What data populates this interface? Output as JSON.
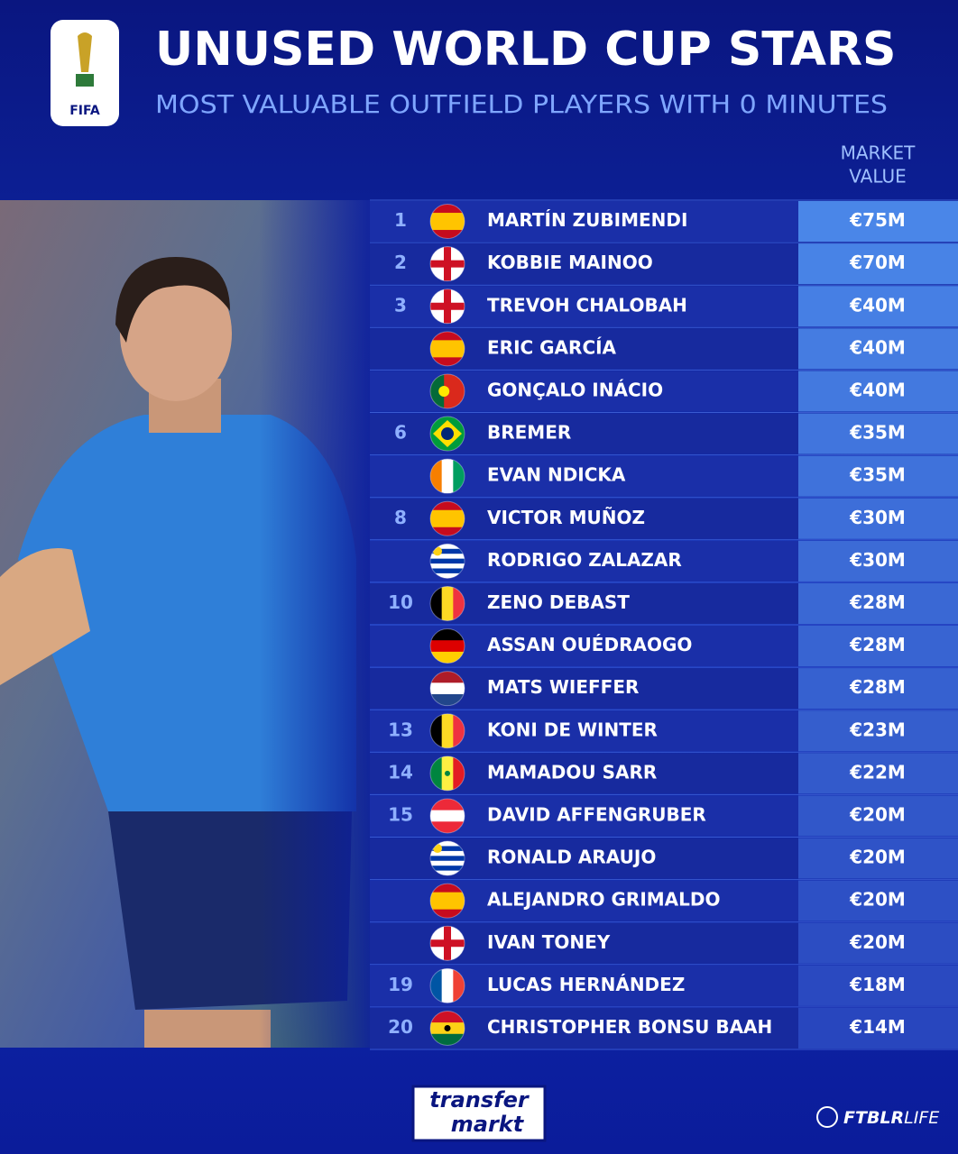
{
  "header": {
    "logo": "FIFA",
    "title": "UNUSED WORLD CUP STARS",
    "subtitle": "MOST VALUABLE OUTFIELD PLAYERS WITH 0 MINUTES"
  },
  "table": {
    "column_header": [
      "MARKET",
      "VALUE"
    ],
    "rows": [
      [
        1,
        "MARTÍN ZUBIMENDI",
        "€75M"
      ],
      [
        2,
        "KOBBIE MAINOO",
        "€70M"
      ],
      [
        3,
        "TREVOH CHALOBAH",
        "€40M"
      ],
      [
        null,
        "ERIC GARCÍA",
        "€40M"
      ],
      [
        null,
        "GONÇALO INÁCIO",
        "€40M"
      ],
      [
        6,
        "BREMER",
        "€35M"
      ],
      [
        null,
        "EVAN NDICKA",
        "€35M"
      ],
      [
        8,
        "VICTOR MUÑOZ",
        "€30M"
      ],
      [
        null,
        "RODRIGO ZALAZAR",
        "€30M"
      ],
      [
        10,
        "ZENO DEBAST",
        "€28M"
      ],
      [
        null,
        "ASSAN OUÉDRAOGO",
        "€28M"
      ],
      [
        null,
        "MATS WIEFFER",
        "€28M"
      ],
      [
        13,
        "KONI DE WINTER",
        "€23M"
      ],
      [
        14,
        "MAMADOU SARR",
        "€22M"
      ],
      [
        15,
        "DAVID AFFENGRUBER",
        "€20M"
      ],
      [
        null,
        "RONALD ARAUJO",
        "€20M"
      ],
      [
        null,
        "ALEJANDRO GRIMALDO",
        "€20M"
      ],
      [
        null,
        "IVAN TONEY",
        "€20M"
      ],
      [
        19,
        "LUCAS HERNÁNDEZ",
        "€18M"
      ],
      [
        20,
        "CHRISTOPHER BONSU BAAH",
        "€14M"
      ]
    ]
  },
  "footer": {
    "brand": [
      "transfer",
      "markt"
    ],
    "credit": [
      "FTBLR",
      "LIFE"
    ]
  }
}
